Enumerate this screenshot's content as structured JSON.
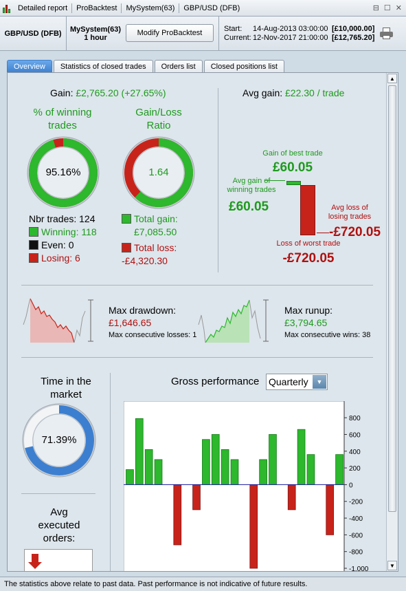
{
  "titlebar": {
    "items": [
      "Detailed report",
      "ProBacktest",
      "MySystem(63)",
      "GBP/USD (DFB)"
    ],
    "icons": [
      "restore-icon",
      "maximize-icon",
      "close-icon"
    ]
  },
  "header": {
    "instrument": "GBP/USD (DFB)",
    "system_name": "MySystem(63)",
    "timeframe": "1 hour",
    "modify_button": "Modify ProBacktest",
    "start_label": "Start:",
    "start_date": "14-Aug-2013 03:00:00",
    "start_value": "[£10,000.00]",
    "current_label": "Current:",
    "current_date": "12-Nov-2017 21:00:00",
    "current_value": "[£12,765.20]"
  },
  "tabs": [
    "Overview",
    "Statistics of closed trades",
    "Orders list",
    "Closed positions list"
  ],
  "overview": {
    "gain_label": "Gain:",
    "gain_value": "£2,765.20 (+27.65%)",
    "winning_title_1": "% of winning",
    "winning_title_2": "trades",
    "winning_pct": "95.16%",
    "winning_fraction": 0.9516,
    "ratio_title_1": "Gain/Loss",
    "ratio_title_2": "Ratio",
    "ratio_value": "1.64",
    "ratio_fraction": 0.6213,
    "nbr_trades": "Nbr trades: 124",
    "winning": "Winning: 118",
    "even": "Even: 0",
    "losing": "Losing: 6",
    "total_gain_label": "Total gain:",
    "total_gain": "£7,085.50",
    "total_loss_label": "Total loss:",
    "total_loss": "-£4,320.30",
    "avg_gain_label": "Avg gain:",
    "avg_gain_value": "£22.30 / trade",
    "best_trade_label": "Gain of best trade",
    "best_trade": "£60.05",
    "avg_winning_label_1": "Avg gain of",
    "avg_winning_label_2": "winning trades",
    "avg_winning": "£60.05",
    "avg_losing_label_1": "Avg loss of",
    "avg_losing_label_2": "losing trades",
    "avg_losing": "-£720.05",
    "worst_trade_label": "Loss of worst trade",
    "worst_trade": "-£720.05",
    "max_drawdown_label": "Max drawdown:",
    "max_drawdown": "£1,646.65",
    "max_consec_losses": "Max consecutive losses: 1",
    "max_runup_label": "Max runup:",
    "max_runup": "£3,794.65",
    "max_consec_wins": "Max consecutive wins: 38",
    "time_market_1": "Time in the",
    "time_market_2": "market",
    "time_market_value": "71.39%",
    "time_market_fraction": 0.7139,
    "avg_orders_1": "Avg",
    "avg_orders_2": "executed",
    "avg_orders_3": "orders:",
    "gross_perf_label": "Gross performance",
    "period_select": "Quarterly"
  },
  "colors": {
    "green": "#2db82d",
    "red": "#c8231a",
    "blue": "#3c7fd0",
    "text_green": "#1e9a1e",
    "text_red": "#b01010"
  },
  "chart_data": {
    "type": "bar",
    "title": "Gross performance",
    "values": [
      180,
      790,
      420,
      300,
      0,
      -720,
      0,
      -300,
      540,
      600,
      420,
      300,
      0,
      -1000,
      300,
      600,
      0,
      -300,
      660,
      360,
      0,
      -600,
      360
    ],
    "ylim": [
      -1000,
      900
    ],
    "yticks": [
      "800",
      "600",
      "400",
      "200",
      "0",
      "-200",
      "-400",
      "-600",
      "-800",
      "-1,000"
    ],
    "ytick_values": [
      800,
      600,
      400,
      200,
      0,
      -200,
      -400,
      -600,
      -800,
      -1000
    ]
  },
  "footer": "The statistics above relate to past data. Past performance is not indicative of future results."
}
